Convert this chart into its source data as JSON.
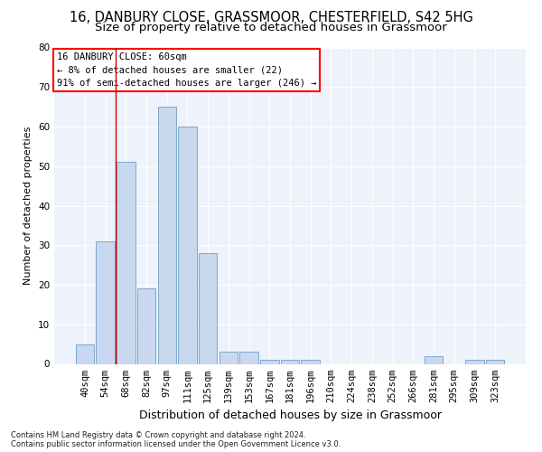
{
  "title1": "16, DANBURY CLOSE, GRASSMOOR, CHESTERFIELD, S42 5HG",
  "title2": "Size of property relative to detached houses in Grassmoor",
  "xlabel": "Distribution of detached houses by size in Grassmoor",
  "ylabel": "Number of detached properties",
  "categories": [
    "40sqm",
    "54sqm",
    "68sqm",
    "82sqm",
    "97sqm",
    "111sqm",
    "125sqm",
    "139sqm",
    "153sqm",
    "167sqm",
    "181sqm",
    "196sqm",
    "210sqm",
    "224sqm",
    "238sqm",
    "252sqm",
    "266sqm",
    "281sqm",
    "295sqm",
    "309sqm",
    "323sqm"
  ],
  "values": [
    5,
    31,
    51,
    19,
    65,
    60,
    28,
    3,
    3,
    1,
    1,
    1,
    0,
    0,
    0,
    0,
    0,
    2,
    0,
    1,
    1
  ],
  "bar_color": "#c8d8ee",
  "bar_edge_color": "#7fa8cc",
  "vline_x_index": 1.5,
  "vline_color": "#cc0000",
  "annotation_box_text": "16 DANBURY CLOSE: 60sqm\n← 8% of detached houses are smaller (22)\n91% of semi-detached houses are larger (246) →",
  "ylim": [
    0,
    80
  ],
  "yticks": [
    0,
    10,
    20,
    30,
    40,
    50,
    60,
    70,
    80
  ],
  "bg_color": "#eef2fa",
  "grid_color": "#ffffff",
  "footnote": "Contains HM Land Registry data © Crown copyright and database right 2024.\nContains public sector information licensed under the Open Government Licence v3.0.",
  "title1_fontsize": 10.5,
  "title2_fontsize": 9.5,
  "xlabel_fontsize": 9,
  "ylabel_fontsize": 8,
  "tick_fontsize": 7.5,
  "annot_fontsize": 7.5,
  "footnote_fontsize": 6
}
